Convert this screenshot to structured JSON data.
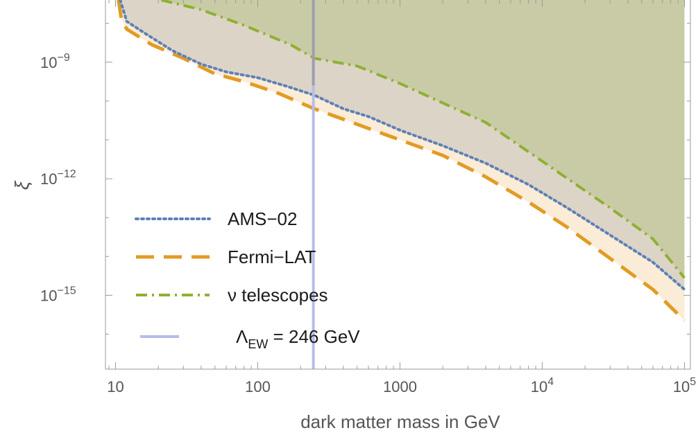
{
  "chart_data": {
    "type": "line",
    "title": "",
    "xlabel": "dark matter mass in GeV",
    "ylabel": "ξ",
    "xscale": "log",
    "yscale": "log",
    "xlim": [
      8.5,
      110000
    ],
    "ylim_log10": [
      -16.9,
      -7.4
    ],
    "x_ticks": [
      {
        "value": 10,
        "base": "10",
        "exp": ""
      },
      {
        "value": 100,
        "base": "100",
        "exp": ""
      },
      {
        "value": 1000,
        "base": "1000",
        "exp": ""
      },
      {
        "value": 10000,
        "base": "10",
        "exp": "4"
      },
      {
        "value": 100000,
        "base": "10",
        "exp": "5"
      }
    ],
    "y_ticks": [
      {
        "log10": -9,
        "base": "10",
        "exp": "−9"
      },
      {
        "log10": -12,
        "base": "10",
        "exp": "−12"
      },
      {
        "log10": -15,
        "base": "10",
        "exp": "−15"
      }
    ],
    "grid": false,
    "legend_position": "bottom-left",
    "series": [
      {
        "name": "AMS−02",
        "color": "#5e81b5",
        "style": "dotted",
        "fill": "#ddd4c8",
        "points": [
          [
            10.8,
            -7.4
          ],
          [
            12,
            -7.95
          ],
          [
            16,
            -8.25
          ],
          [
            25,
            -8.7
          ],
          [
            40,
            -9.05
          ],
          [
            60,
            -9.25
          ],
          [
            100,
            -9.4
          ],
          [
            160,
            -9.62
          ],
          [
            250,
            -9.85
          ],
          [
            400,
            -10.2
          ],
          [
            600,
            -10.4
          ],
          [
            1000,
            -10.75
          ],
          [
            2000,
            -11.15
          ],
          [
            4000,
            -11.6
          ],
          [
            8000,
            -12.15
          ],
          [
            15000,
            -12.75
          ],
          [
            30000,
            -13.45
          ],
          [
            60000,
            -14.15
          ],
          [
            100000,
            -14.85
          ]
        ]
      },
      {
        "name": "Fermi−LAT",
        "color": "#e19c24",
        "style": "dashed",
        "fill": "#fbecd8",
        "points": [
          [
            10.5,
            -7.4
          ],
          [
            11,
            -7.9
          ],
          [
            12,
            -8.15
          ],
          [
            18,
            -8.55
          ],
          [
            30,
            -8.9
          ],
          [
            50,
            -9.3
          ],
          [
            80,
            -9.5
          ],
          [
            140,
            -9.8
          ],
          [
            250,
            -10.2
          ],
          [
            500,
            -10.6
          ],
          [
            1000,
            -11
          ],
          [
            2000,
            -11.4
          ],
          [
            4000,
            -11.95
          ],
          [
            8000,
            -12.6
          ],
          [
            15000,
            -13.25
          ],
          [
            30000,
            -14.05
          ],
          [
            60000,
            -14.85
          ],
          [
            100000,
            -15.65
          ]
        ]
      },
      {
        "name": "ν telescopes",
        "color": "#8fb032",
        "style": "dashdot",
        "fill": "#c9cba6",
        "points": [
          [
            21,
            -7.4
          ],
          [
            40,
            -7.65
          ],
          [
            80,
            -8.05
          ],
          [
            170,
            -8.55
          ],
          [
            250,
            -8.9
          ],
          [
            500,
            -9.1
          ],
          [
            1000,
            -9.55
          ],
          [
            2000,
            -10.05
          ],
          [
            4000,
            -10.55
          ],
          [
            10000,
            -11.55
          ],
          [
            30000,
            -12.75
          ],
          [
            60000,
            -13.55
          ],
          [
            100000,
            -14.55
          ]
        ]
      }
    ],
    "vline": {
      "name": "Λ",
      "name_sub": "EW",
      "label_suffix": " = 246 GeV",
      "x": 246,
      "color": "#b7bde9"
    }
  }
}
